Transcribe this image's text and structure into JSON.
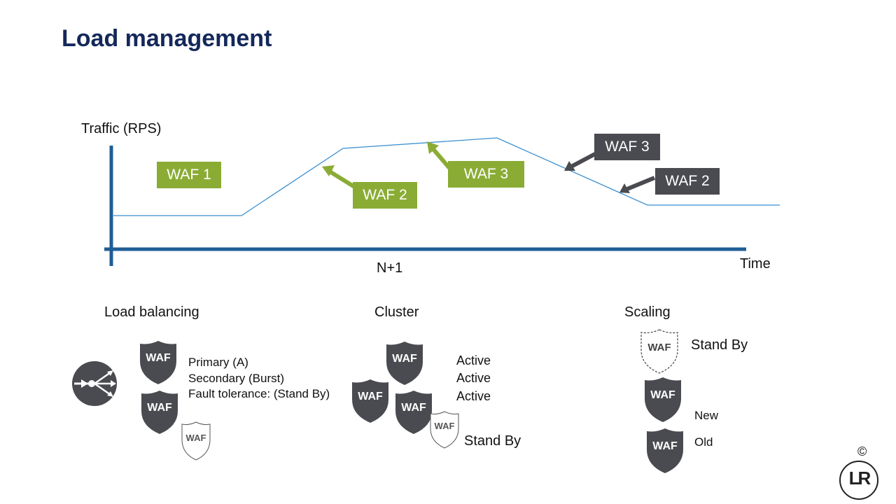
{
  "title": "Load management",
  "chart": {
    "y_label": "Traffic (RPS)",
    "x_label": "Time",
    "midpoint_label": "N+1",
    "boxes": {
      "waf1": "WAF 1",
      "waf2_up": "WAF 2",
      "waf3_up": "WAF 3",
      "waf3_down": "WAF 3",
      "waf2_down": "WAF 2"
    }
  },
  "sections": {
    "load_balancing": {
      "heading": "Load balancing",
      "lines": [
        "Primary (A)",
        "Secondary (Burst)",
        "Fault tolerance: (Stand By)"
      ],
      "icon": "load-balancer-icon"
    },
    "cluster": {
      "heading": "Cluster",
      "lines": [
        "Active",
        "Active",
        "Active"
      ],
      "standby": "Stand By"
    },
    "scaling": {
      "heading": "Scaling",
      "standby": "Stand By",
      "new": "New",
      "old": "Old"
    }
  },
  "shield_text": "WAF",
  "copyright": "©",
  "logo_text": "LR",
  "colors": {
    "title": "#14285a",
    "axis": "#1f5d96",
    "line": "#3a8fd0",
    "green": "#8aac35",
    "dark": "#4a4b50"
  }
}
